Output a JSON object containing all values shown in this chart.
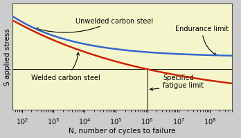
{
  "background_color": "#f5f5cc",
  "border_color": "#888888",
  "xlabel": "N, number of cycles to failure",
  "ylabel": "S applied stress",
  "xlim_log": [
    1.7,
    8.7
  ],
  "ylim": [
    0,
    1
  ],
  "title": "",
  "unwelded_label": "Unwelded carbon steel",
  "welded_label": "Welded carbon steel",
  "endurance_label": "Endurance limit",
  "fatigue_label": "Specified\nfatigue limit",
  "unwelded_color": "#3366cc",
  "welded_color": "#cc2200",
  "line_color": "#000000",
  "annotation_color": "#000000",
  "xlabel_fontsize": 7.5,
  "ylabel_fontsize": 7.5,
  "tick_fontsize": 7,
  "annotation_fontsize": 7
}
